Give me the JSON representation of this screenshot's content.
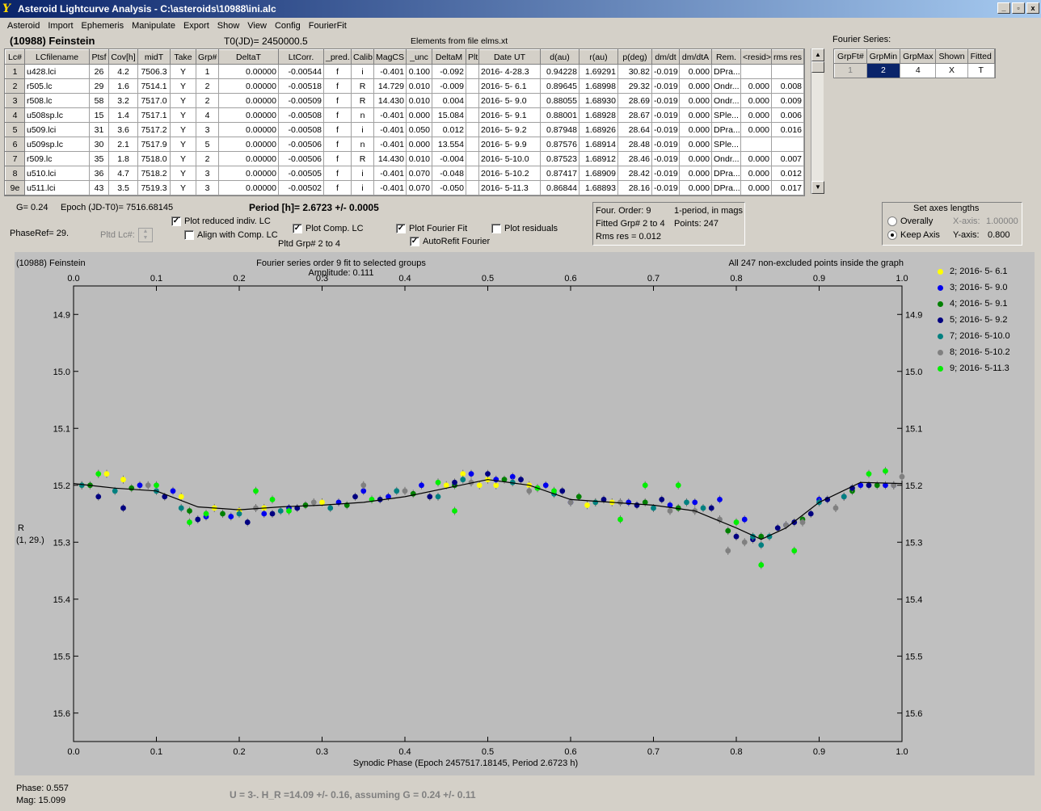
{
  "window": {
    "title": "Asteroid Lightcurve Analysis - C:\\asteroids\\10988\\ini.alc",
    "controls": [
      "_",
      "▫",
      "x"
    ]
  },
  "menu": [
    "Asteroid",
    "Import",
    "Ephemeris",
    "Manipulate",
    "Export",
    "Show",
    "View",
    "Config",
    "FourierFit"
  ],
  "header": {
    "asteroid": "(10988) Feinstein",
    "t0": "T0(JD)= 2450000.5",
    "elements": "Elements from file elms.xt"
  },
  "table": {
    "columns": [
      "Lc#",
      "LCfilename",
      "Ptsf",
      "Cov[h]",
      "midT",
      "Take",
      "Grp#",
      "DeltaT",
      "LtCorr.",
      "_pred.",
      "Calib",
      "MagCS",
      "_unc",
      "DeltaM",
      "Plt",
      "Date UT",
      "d(au)",
      "r(au)",
      "p(deg)",
      "dm/dt",
      "dm/dtA",
      "Rem.",
      "<resid>",
      "rms res"
    ],
    "rows": [
      [
        "1",
        "u428.lci",
        "26",
        "4.2",
        "7506.3",
        "Y",
        "1",
        "0.00000",
        "-0.00544",
        "f",
        "i",
        "-0.401",
        "0.100",
        "-0.092",
        "",
        "2016- 4-28.3",
        "0.94228",
        "1.69291",
        "30.82",
        "-0.019",
        "0.000",
        "DPra...",
        "",
        ""
      ],
      [
        "2",
        "r505.lc",
        "29",
        "1.6",
        "7514.1",
        "Y",
        "2",
        "0.00000",
        "-0.00518",
        "f",
        "R",
        "14.729",
        "0.010",
        "-0.009",
        "",
        "2016- 5- 6.1",
        "0.89645",
        "1.68998",
        "29.32",
        "-0.019",
        "0.000",
        "Ondr...",
        "0.000",
        "0.008"
      ],
      [
        "3",
        "r508.lc",
        "58",
        "3.2",
        "7517.0",
        "Y",
        "2",
        "0.00000",
        "-0.00509",
        "f",
        "R",
        "14.430",
        "0.010",
        "0.004",
        "",
        "2016- 5- 9.0",
        "0.88055",
        "1.68930",
        "28.69",
        "-0.019",
        "0.000",
        "Ondr...",
        "0.000",
        "0.009"
      ],
      [
        "4",
        "u508sp.lc",
        "15",
        "1.4",
        "7517.1",
        "Y",
        "4",
        "0.00000",
        "-0.00508",
        "f",
        "n",
        "-0.401",
        "0.000",
        "15.084",
        "",
        "2016- 5- 9.1",
        "0.88001",
        "1.68928",
        "28.67",
        "-0.019",
        "0.000",
        "SPle...",
        "0.000",
        "0.006"
      ],
      [
        "5",
        "u509.lci",
        "31",
        "3.6",
        "7517.2",
        "Y",
        "3",
        "0.00000",
        "-0.00508",
        "f",
        "i",
        "-0.401",
        "0.050",
        "0.012",
        "",
        "2016- 5- 9.2",
        "0.87948",
        "1.68926",
        "28.64",
        "-0.019",
        "0.000",
        "DPra...",
        "0.000",
        "0.016"
      ],
      [
        "6",
        "u509sp.lc",
        "30",
        "2.1",
        "7517.9",
        "Y",
        "5",
        "0.00000",
        "-0.00506",
        "f",
        "n",
        "-0.401",
        "0.000",
        "13.554",
        "",
        "2016- 5- 9.9",
        "0.87576",
        "1.68914",
        "28.48",
        "-0.019",
        "0.000",
        "SPle...",
        "",
        ""
      ],
      [
        "7",
        "r509.lc",
        "35",
        "1.8",
        "7518.0",
        "Y",
        "2",
        "0.00000",
        "-0.00506",
        "f",
        "R",
        "14.430",
        "0.010",
        "-0.004",
        "",
        "2016- 5-10.0",
        "0.87523",
        "1.68912",
        "28.46",
        "-0.019",
        "0.000",
        "Ondr...",
        "0.000",
        "0.007"
      ],
      [
        "8",
        "u510.lci",
        "36",
        "4.7",
        "7518.2",
        "Y",
        "3",
        "0.00000",
        "-0.00505",
        "f",
        "i",
        "-0.401",
        "0.070",
        "-0.048",
        "",
        "2016- 5-10.2",
        "0.87417",
        "1.68909",
        "28.42",
        "-0.019",
        "0.000",
        "DPra...",
        "0.000",
        "0.012"
      ],
      [
        "9e",
        "u511.lci",
        "43",
        "3.5",
        "7519.3",
        "Y",
        "3",
        "0.00000",
        "-0.00502",
        "f",
        "i",
        "-0.401",
        "0.070",
        "-0.050",
        "",
        "2016- 5-11.3",
        "0.86844",
        "1.68893",
        "28.16",
        "-0.019",
        "0.000",
        "DPra...",
        "0.000",
        "0.017"
      ]
    ]
  },
  "fourier_series": {
    "label": "Fourier Series:",
    "columns": [
      "GrpFt#",
      "GrpMin",
      "GrpMax",
      "Shown",
      "Fitted"
    ],
    "row": [
      "1",
      "2",
      "4",
      "X",
      "T"
    ]
  },
  "params": {
    "g": "G= 0.24",
    "epoch": "Epoch (JD-T0)= 7516.68145",
    "period": "Period [h]= 2.6723 +/- 0.0005",
    "phaseref": "PhaseRef= 29.",
    "pltd_lc": "Pltd Lc#:",
    "pltd_grp": "Pltd Grp#  2   to   4"
  },
  "checkboxes": {
    "plot_reduced": {
      "label": "Plot reduced indiv. LC",
      "checked": true
    },
    "align_comp": {
      "label": "Align with Comp. LC",
      "checked": false
    },
    "plot_comp": {
      "label": "Plot Comp. LC",
      "checked": true
    },
    "plot_fourier": {
      "label": "Plot Fourier Fit",
      "checked": true
    },
    "autorefit": {
      "label": "AutoRefit Fourier",
      "checked": true
    },
    "plot_residuals": {
      "label": "Plot residuals",
      "checked": false
    }
  },
  "fit_info": {
    "order": "Four. Order:  9",
    "mode": "1-period, in mags",
    "fitted": "Fitted Grp# 2 to 4",
    "points": "Points: 247",
    "rms": "Rms res     = 0.012"
  },
  "axes_box": {
    "title": "Set axes lengths",
    "overally": "Overally",
    "keep_axis": "Keep Axis",
    "xaxis_label": "X-axis:",
    "xaxis_val": "1.00000",
    "yaxis_label": "Y-axis:",
    "yaxis_val": "0.800",
    "selected": "Keep Axis"
  },
  "chart_data": {
    "type": "scatter",
    "corner_label": "(10988) Feinstein",
    "title": "Fourier series order 9 fit to selected groups",
    "subtitle": "Amplitude: 0.111",
    "note": "All 247 non-excluded points inside the graph",
    "xlabel": "Synodic Phase (Epoch 2457517.18145, Period 2.6723 h)",
    "ylabel": "R",
    "ylabel2": "(1, 29.)",
    "xlim": [
      0,
      1
    ],
    "ylim": [
      15.65,
      14.85
    ],
    "x_ticks": [
      "0.0",
      "0.1",
      "0.2",
      "0.3",
      "0.4",
      "0.5",
      "0.6",
      "0.7",
      "0.8",
      "0.9",
      "1.0"
    ],
    "y_ticks": [
      "14.9",
      "15.0",
      "15.1",
      "15.2",
      "15.3",
      "15.4",
      "15.5",
      "15.6"
    ],
    "fourier_fit": {
      "x": [
        0,
        0.05,
        0.1,
        0.15,
        0.2,
        0.25,
        0.3,
        0.35,
        0.4,
        0.45,
        0.5,
        0.55,
        0.6,
        0.65,
        0.7,
        0.75,
        0.8,
        0.83,
        0.86,
        0.9,
        0.95,
        1.0
      ],
      "y": [
        15.197,
        15.205,
        15.21,
        15.238,
        15.243,
        15.238,
        15.235,
        15.23,
        15.22,
        15.205,
        15.19,
        15.2,
        15.225,
        15.23,
        15.235,
        15.245,
        15.275,
        15.295,
        15.275,
        15.23,
        15.195,
        15.197
      ]
    },
    "series": [
      {
        "name": "2; 2016- 5- 6.1",
        "color": "#ffff00",
        "x": [
          0.01,
          0.03,
          0.04,
          0.06,
          0.13,
          0.17,
          0.2,
          0.23,
          0.3,
          0.45,
          0.47,
          0.49,
          0.5,
          0.51,
          0.55,
          0.62,
          0.63,
          0.65
        ],
        "y": [
          15.2,
          15.18,
          15.18,
          15.19,
          15.22,
          15.24,
          15.245,
          15.24,
          15.23,
          15.2,
          15.18,
          15.2,
          15.19,
          15.2,
          15.2,
          15.235,
          15.23,
          15.23
        ]
      },
      {
        "name": "3; 2016- 5- 9.0",
        "color": "#0000ee",
        "x": [
          0.08,
          0.12,
          0.16,
          0.19,
          0.23,
          0.26,
          0.32,
          0.35,
          0.38,
          0.42,
          0.48,
          0.51,
          0.53,
          0.57,
          0.6,
          0.67,
          0.72,
          0.75,
          0.78,
          0.81,
          0.86,
          0.9,
          0.93,
          0.95,
          0.98,
          0.99
        ],
        "y": [
          15.2,
          15.21,
          15.255,
          15.255,
          15.25,
          15.24,
          15.23,
          15.21,
          15.22,
          15.2,
          15.18,
          15.19,
          15.185,
          15.2,
          15.23,
          15.23,
          15.235,
          15.23,
          15.225,
          15.26,
          15.27,
          15.225,
          15.22,
          15.2,
          15.2,
          15.2
        ]
      },
      {
        "name": "4; 2016- 5- 9.1",
        "color": "#008000",
        "x": [
          0.02,
          0.07,
          0.14,
          0.18,
          0.28,
          0.33,
          0.41,
          0.46,
          0.52,
          0.56,
          0.61,
          0.69,
          0.73,
          0.79,
          0.83,
          0.88,
          0.94,
          0.97
        ],
        "y": [
          15.2,
          15.205,
          15.245,
          15.25,
          15.235,
          15.235,
          15.215,
          15.2,
          15.19,
          15.205,
          15.22,
          15.23,
          15.24,
          15.28,
          15.29,
          15.26,
          15.21,
          15.2
        ]
      },
      {
        "name": "5; 2016- 5- 9.2",
        "color": "#000080",
        "x": [
          0.03,
          0.06,
          0.11,
          0.15,
          0.21,
          0.24,
          0.27,
          0.34,
          0.37,
          0.43,
          0.46,
          0.5,
          0.54,
          0.59,
          0.64,
          0.68,
          0.71,
          0.77,
          0.8,
          0.82,
          0.85,
          0.87,
          0.89,
          0.91,
          0.94,
          0.96
        ],
        "y": [
          15.22,
          15.24,
          15.22,
          15.26,
          15.265,
          15.25,
          15.24,
          15.22,
          15.225,
          15.22,
          15.195,
          15.18,
          15.19,
          15.21,
          15.225,
          15.235,
          15.225,
          15.24,
          15.29,
          15.295,
          15.275,
          15.265,
          15.25,
          15.225,
          15.205,
          15.2
        ]
      },
      {
        "name": "7; 2016- 5-10.0",
        "color": "#008080",
        "x": [
          0.01,
          0.05,
          0.1,
          0.13,
          0.2,
          0.25,
          0.31,
          0.39,
          0.44,
          0.47,
          0.53,
          0.58,
          0.63,
          0.7,
          0.74,
          0.76,
          0.82,
          0.83,
          0.84,
          0.9,
          0.93
        ],
        "y": [
          15.2,
          15.21,
          15.21,
          15.24,
          15.25,
          15.245,
          15.24,
          15.21,
          15.22,
          15.19,
          15.195,
          15.215,
          15.23,
          15.24,
          15.23,
          15.24,
          15.29,
          15.305,
          15.29,
          15.23,
          15.22
        ]
      },
      {
        "name": "8; 2016- 5-10.2",
        "color": "#808080",
        "x": [
          0.09,
          0.22,
          0.29,
          0.35,
          0.4,
          0.48,
          0.55,
          0.6,
          0.66,
          0.72,
          0.75,
          0.78,
          0.79,
          0.81,
          0.86,
          0.88,
          0.92,
          0.99,
          1.0
        ],
        "y": [
          15.2,
          15.24,
          15.23,
          15.2,
          15.21,
          15.195,
          15.21,
          15.23,
          15.23,
          15.245,
          15.245,
          15.26,
          15.315,
          15.3,
          15.27,
          15.265,
          15.24,
          15.2,
          15.185
        ]
      },
      {
        "name": "9; 2016- 5-11.3",
        "color": "#00ee00",
        "x": [
          0.03,
          0.1,
          0.14,
          0.16,
          0.22,
          0.24,
          0.26,
          0.36,
          0.44,
          0.46,
          0.56,
          0.58,
          0.66,
          0.69,
          0.73,
          0.8,
          0.83,
          0.87,
          0.96,
          0.98
        ],
        "y": [
          15.18,
          15.2,
          15.265,
          15.25,
          15.21,
          15.225,
          15.245,
          15.225,
          15.195,
          15.245,
          15.205,
          15.21,
          15.26,
          15.2,
          15.2,
          15.265,
          15.34,
          15.315,
          15.18,
          15.175
        ]
      }
    ]
  },
  "footer": {
    "phase": "Phase:  0.557",
    "mag": "Mag:   15.099",
    "hmag": "U = 3-.   H_R =14.09 +/- 0.16,  assuming G = 0.24 +/- 0.11"
  }
}
